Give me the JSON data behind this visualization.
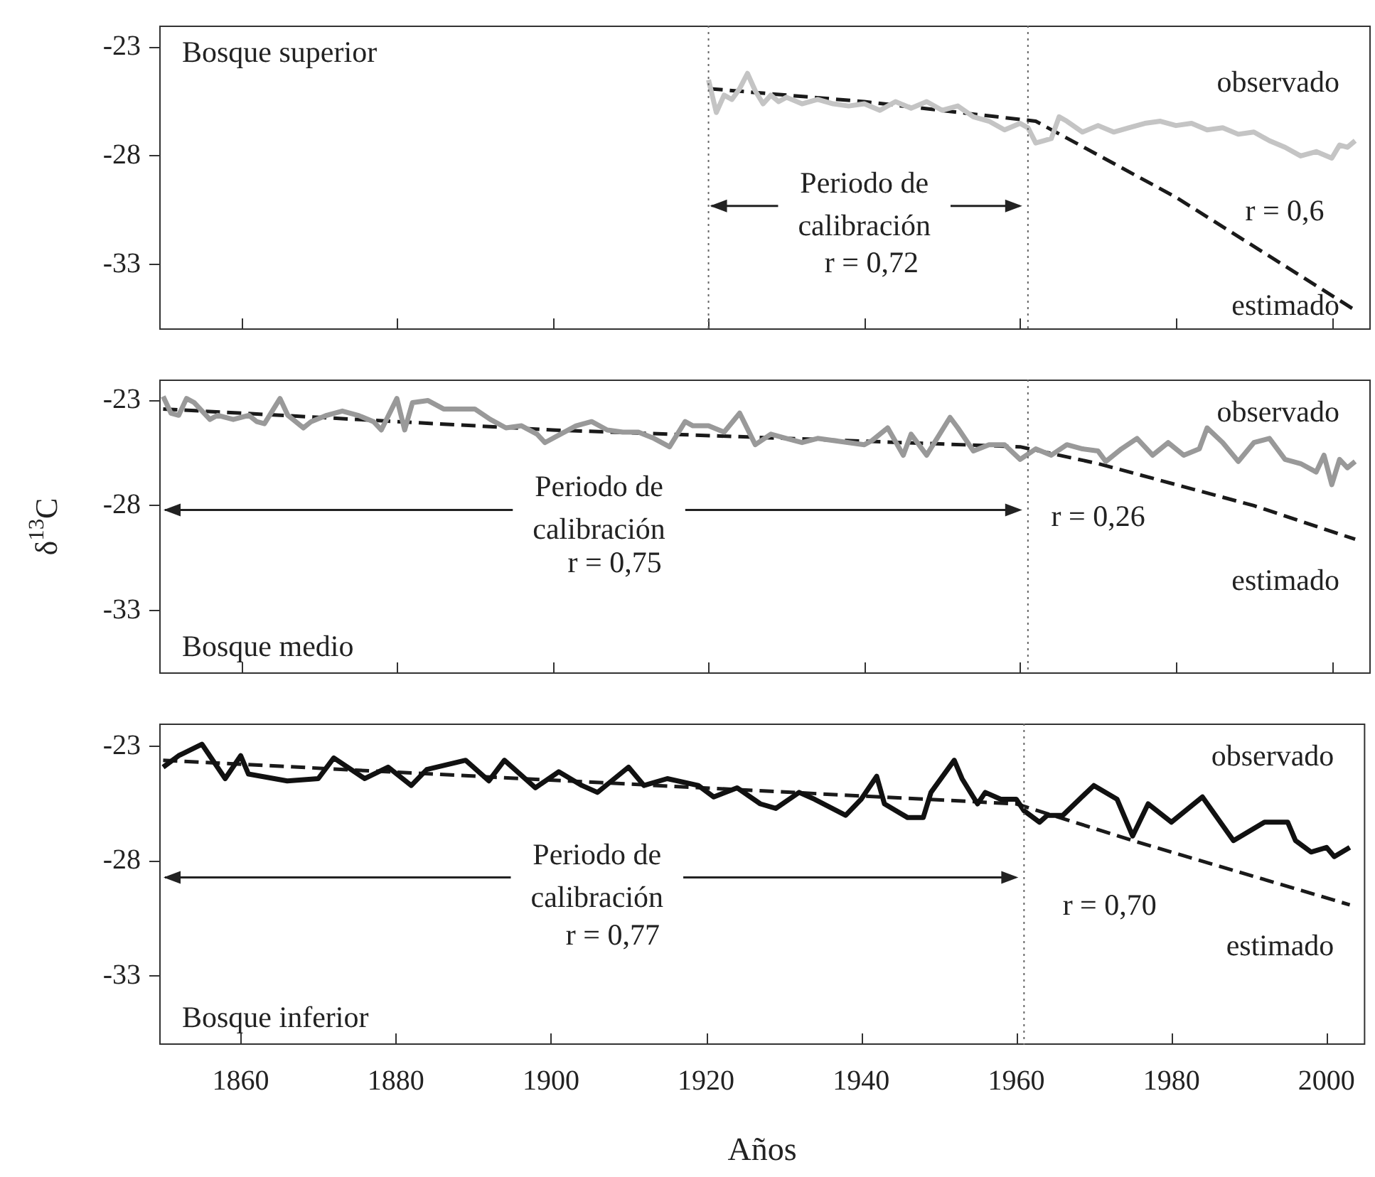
{
  "chart_data": [
    {
      "type": "line",
      "title": "Bosque superior",
      "xlim": [
        1849.5,
        2005
      ],
      "xticks": [
        1860,
        1880,
        1900,
        1920,
        1940,
        1960,
        1980,
        2000
      ],
      "ylim": [
        -36,
        -22
      ],
      "yticks": [
        -23,
        -28,
        -33
      ],
      "tick_labels": "y",
      "marker": "none",
      "series": [
        {
          "name": "observado",
          "color": "#c4c4c4",
          "line_style": "solid",
          "x": [
            1920,
            1921,
            1922,
            1923,
            1924,
            1925,
            1926,
            1927,
            1928,
            1929,
            1930,
            1932,
            1934,
            1936,
            1938,
            1940,
            1942,
            1944,
            1946,
            1948,
            1950,
            1952,
            1954,
            1956,
            1958,
            1960,
            1961,
            1962,
            1963,
            1964,
            1965,
            1966,
            1968,
            1970,
            1972,
            1974,
            1976,
            1978,
            1980,
            1982,
            1984,
            1986,
            1988,
            1990,
            1992,
            1994,
            1996,
            1998,
            2000,
            2001,
            2002,
            2003
          ],
          "values": [
            -24.5,
            -26.0,
            -25.2,
            -25.4,
            -24.9,
            -24.2,
            -25.0,
            -25.6,
            -25.2,
            -25.5,
            -25.3,
            -25.6,
            -25.4,
            -25.6,
            -25.7,
            -25.6,
            -25.9,
            -25.5,
            -25.8,
            -25.5,
            -25.9,
            -25.7,
            -26.2,
            -26.4,
            -26.8,
            -26.5,
            -26.7,
            -27.4,
            -27.3,
            -27.2,
            -26.2,
            -26.4,
            -26.9,
            -26.6,
            -26.9,
            -26.7,
            -26.5,
            -26.4,
            -26.6,
            -26.5,
            -26.8,
            -26.7,
            -27.0,
            -26.9,
            -27.3,
            -27.6,
            -28.0,
            -27.8,
            -28.1,
            -27.5,
            -27.6,
            -27.3
          ]
        },
        {
          "name": "estimado",
          "color": "#1a1a1a",
          "line_style": "dashed",
          "x": [
            1920,
            1940,
            1962,
            1980,
            2003
          ],
          "values": [
            -24.9,
            -25.5,
            -26.4,
            -29.9,
            -35.1
          ]
        }
      ],
      "ref_lines": [
        {
          "axis": "x",
          "value": 1920,
          "line_style": "dotted"
        },
        {
          "axis": "x",
          "value": 1961,
          "line_style": "dotted"
        }
      ],
      "annotations": [
        "Periodo de\ncalibración",
        "r = 0,72",
        "r = 0,6"
      ]
    },
    {
      "type": "line",
      "title": "Bosque medio",
      "ylabel": "δ$^{13}$C",
      "xlim": [
        1849.5,
        2005
      ],
      "xticks": [
        1860,
        1880,
        1900,
        1920,
        1940,
        1960,
        1980,
        2000
      ],
      "ylim": [
        -36,
        -22
      ],
      "yticks": [
        -23,
        -28,
        -33
      ],
      "tick_labels": "y",
      "marker": "none",
      "series": [
        {
          "name": "observado",
          "color": "#999999",
          "line_style": "solid",
          "x": [
            1850,
            1851,
            1852,
            1853,
            1854,
            1856,
            1857,
            1859,
            1861,
            1862,
            1863,
            1865,
            1866,
            1868,
            1869,
            1871,
            1873,
            1875,
            1877,
            1878,
            1880,
            1881,
            1882,
            1884,
            1886,
            1888,
            1890,
            1892,
            1894,
            1896,
            1898,
            1899,
            1901,
            1903,
            1905,
            1907,
            1909,
            1911,
            1913,
            1915,
            1917,
            1918,
            1920,
            1922,
            1924,
            1926,
            1928,
            1930,
            1932,
            1934,
            1936,
            1938,
            1940,
            1941,
            1943,
            1945,
            1946,
            1948,
            1951,
            1952,
            1954,
            1956,
            1958,
            1960,
            1962,
            1964,
            1966,
            1968,
            1970,
            1971,
            1973,
            1975,
            1977,
            1979,
            1981,
            1983,
            1984,
            1986,
            1988,
            1990,
            1992,
            1994,
            1996,
            1998,
            1999,
            2000,
            2001,
            2002,
            2003
          ],
          "values": [
            -22.8,
            -23.6,
            -23.7,
            -22.9,
            -23.1,
            -23.9,
            -23.7,
            -23.9,
            -23.7,
            -24.0,
            -24.1,
            -22.9,
            -23.7,
            -24.3,
            -24.0,
            -23.7,
            -23.5,
            -23.7,
            -24.0,
            -24.4,
            -22.9,
            -24.4,
            -23.1,
            -23.0,
            -23.4,
            -23.4,
            -23.4,
            -23.9,
            -24.3,
            -24.2,
            -24.6,
            -25.0,
            -24.6,
            -24.2,
            -24.0,
            -24.4,
            -24.5,
            -24.5,
            -24.8,
            -25.2,
            -24.0,
            -24.2,
            -24.2,
            -24.5,
            -23.6,
            -25.1,
            -24.6,
            -24.8,
            -25.0,
            -24.8,
            -24.9,
            -25.0,
            -25.1,
            -24.9,
            -24.3,
            -25.6,
            -24.6,
            -25.6,
            -23.8,
            -24.3,
            -25.4,
            -25.1,
            -25.1,
            -25.8,
            -25.3,
            -25.6,
            -25.1,
            -25.3,
            -25.4,
            -25.9,
            -25.3,
            -24.8,
            -25.6,
            -25.0,
            -25.6,
            -25.3,
            -24.3,
            -25.0,
            -25.9,
            -25.0,
            -24.8,
            -25.8,
            -26.0,
            -26.4,
            -25.6,
            -27.0,
            -25.8,
            -26.2,
            -25.9
          ]
        },
        {
          "name": "estimado",
          "color": "#1a1a1a",
          "line_style": "dashed",
          "x": [
            1850,
            1900,
            1960,
            1970,
            1990,
            2003
          ],
          "values": [
            -23.4,
            -24.4,
            -25.2,
            -26.0,
            -28.0,
            -29.6
          ]
        }
      ],
      "ref_lines": [
        {
          "axis": "x",
          "value": 1961,
          "line_style": "dotted"
        }
      ],
      "annotations": [
        "Periodo de\ncalibración",
        "r = 0,75",
        "r = 0,26"
      ]
    },
    {
      "type": "line",
      "title": "Bosque inferior",
      "xlabel": "Años",
      "xlim": [
        1849.5,
        2005
      ],
      "xticks": [
        1860,
        1880,
        1900,
        1920,
        1940,
        1960,
        1980,
        2000
      ],
      "ylim": [
        -36,
        -22
      ],
      "yticks": [
        -23,
        -28,
        -33
      ],
      "marker": "none",
      "series": [
        {
          "name": "observado",
          "color": "#111111",
          "line_style": "solid",
          "x": [
            1850,
            1852,
            1855,
            1858,
            1860,
            1861,
            1866,
            1870,
            1872,
            1876,
            1879,
            1882,
            1884,
            1889,
            1892,
            1894,
            1898,
            1901,
            1904,
            1906,
            1910,
            1912,
            1915,
            1919,
            1921,
            1924,
            1927,
            1929,
            1932,
            1934,
            1938,
            1940,
            1942,
            1943,
            1946,
            1948,
            1949,
            1952,
            1953,
            1955,
            1956,
            1958,
            1960,
            1961,
            1963,
            1964,
            1966,
            1970,
            1973,
            1975,
            1977,
            1980,
            1984,
            1988,
            1992,
            1995,
            1996,
            1998,
            2000,
            2001,
            2003
          ],
          "values": [
            -23.9,
            -23.4,
            -22.9,
            -24.4,
            -23.4,
            -24.2,
            -24.5,
            -24.4,
            -23.5,
            -24.4,
            -23.9,
            -24.7,
            -24.0,
            -23.6,
            -24.5,
            -23.6,
            -24.8,
            -24.1,
            -24.7,
            -25.0,
            -23.9,
            -24.7,
            -24.4,
            -24.7,
            -25.2,
            -24.8,
            -25.5,
            -25.7,
            -25.0,
            -25.3,
            -26.0,
            -25.3,
            -24.3,
            -25.5,
            -26.1,
            -26.1,
            -25.0,
            -23.6,
            -24.4,
            -25.5,
            -25.0,
            -25.3,
            -25.3,
            -25.8,
            -26.3,
            -26.0,
            -26.0,
            -24.7,
            -25.3,
            -26.9,
            -25.5,
            -26.3,
            -25.2,
            -27.1,
            -26.3,
            -26.3,
            -27.1,
            -27.6,
            -27.4,
            -27.8,
            -27.4
          ]
        },
        {
          "name": "estimado",
          "color": "#1a1a1a",
          "line_style": "dashed",
          "x": [
            1850,
            1960,
            1975,
            2003
          ],
          "values": [
            -23.6,
            -25.5,
            -27.1,
            -29.9
          ]
        }
      ],
      "ref_lines": [
        {
          "axis": "x",
          "value": 1961,
          "line_style": "dotted"
        }
      ],
      "annotations": [
        "Periodo de\ncalibración",
        "r = 0,77",
        "r = 0,70"
      ]
    }
  ]
}
